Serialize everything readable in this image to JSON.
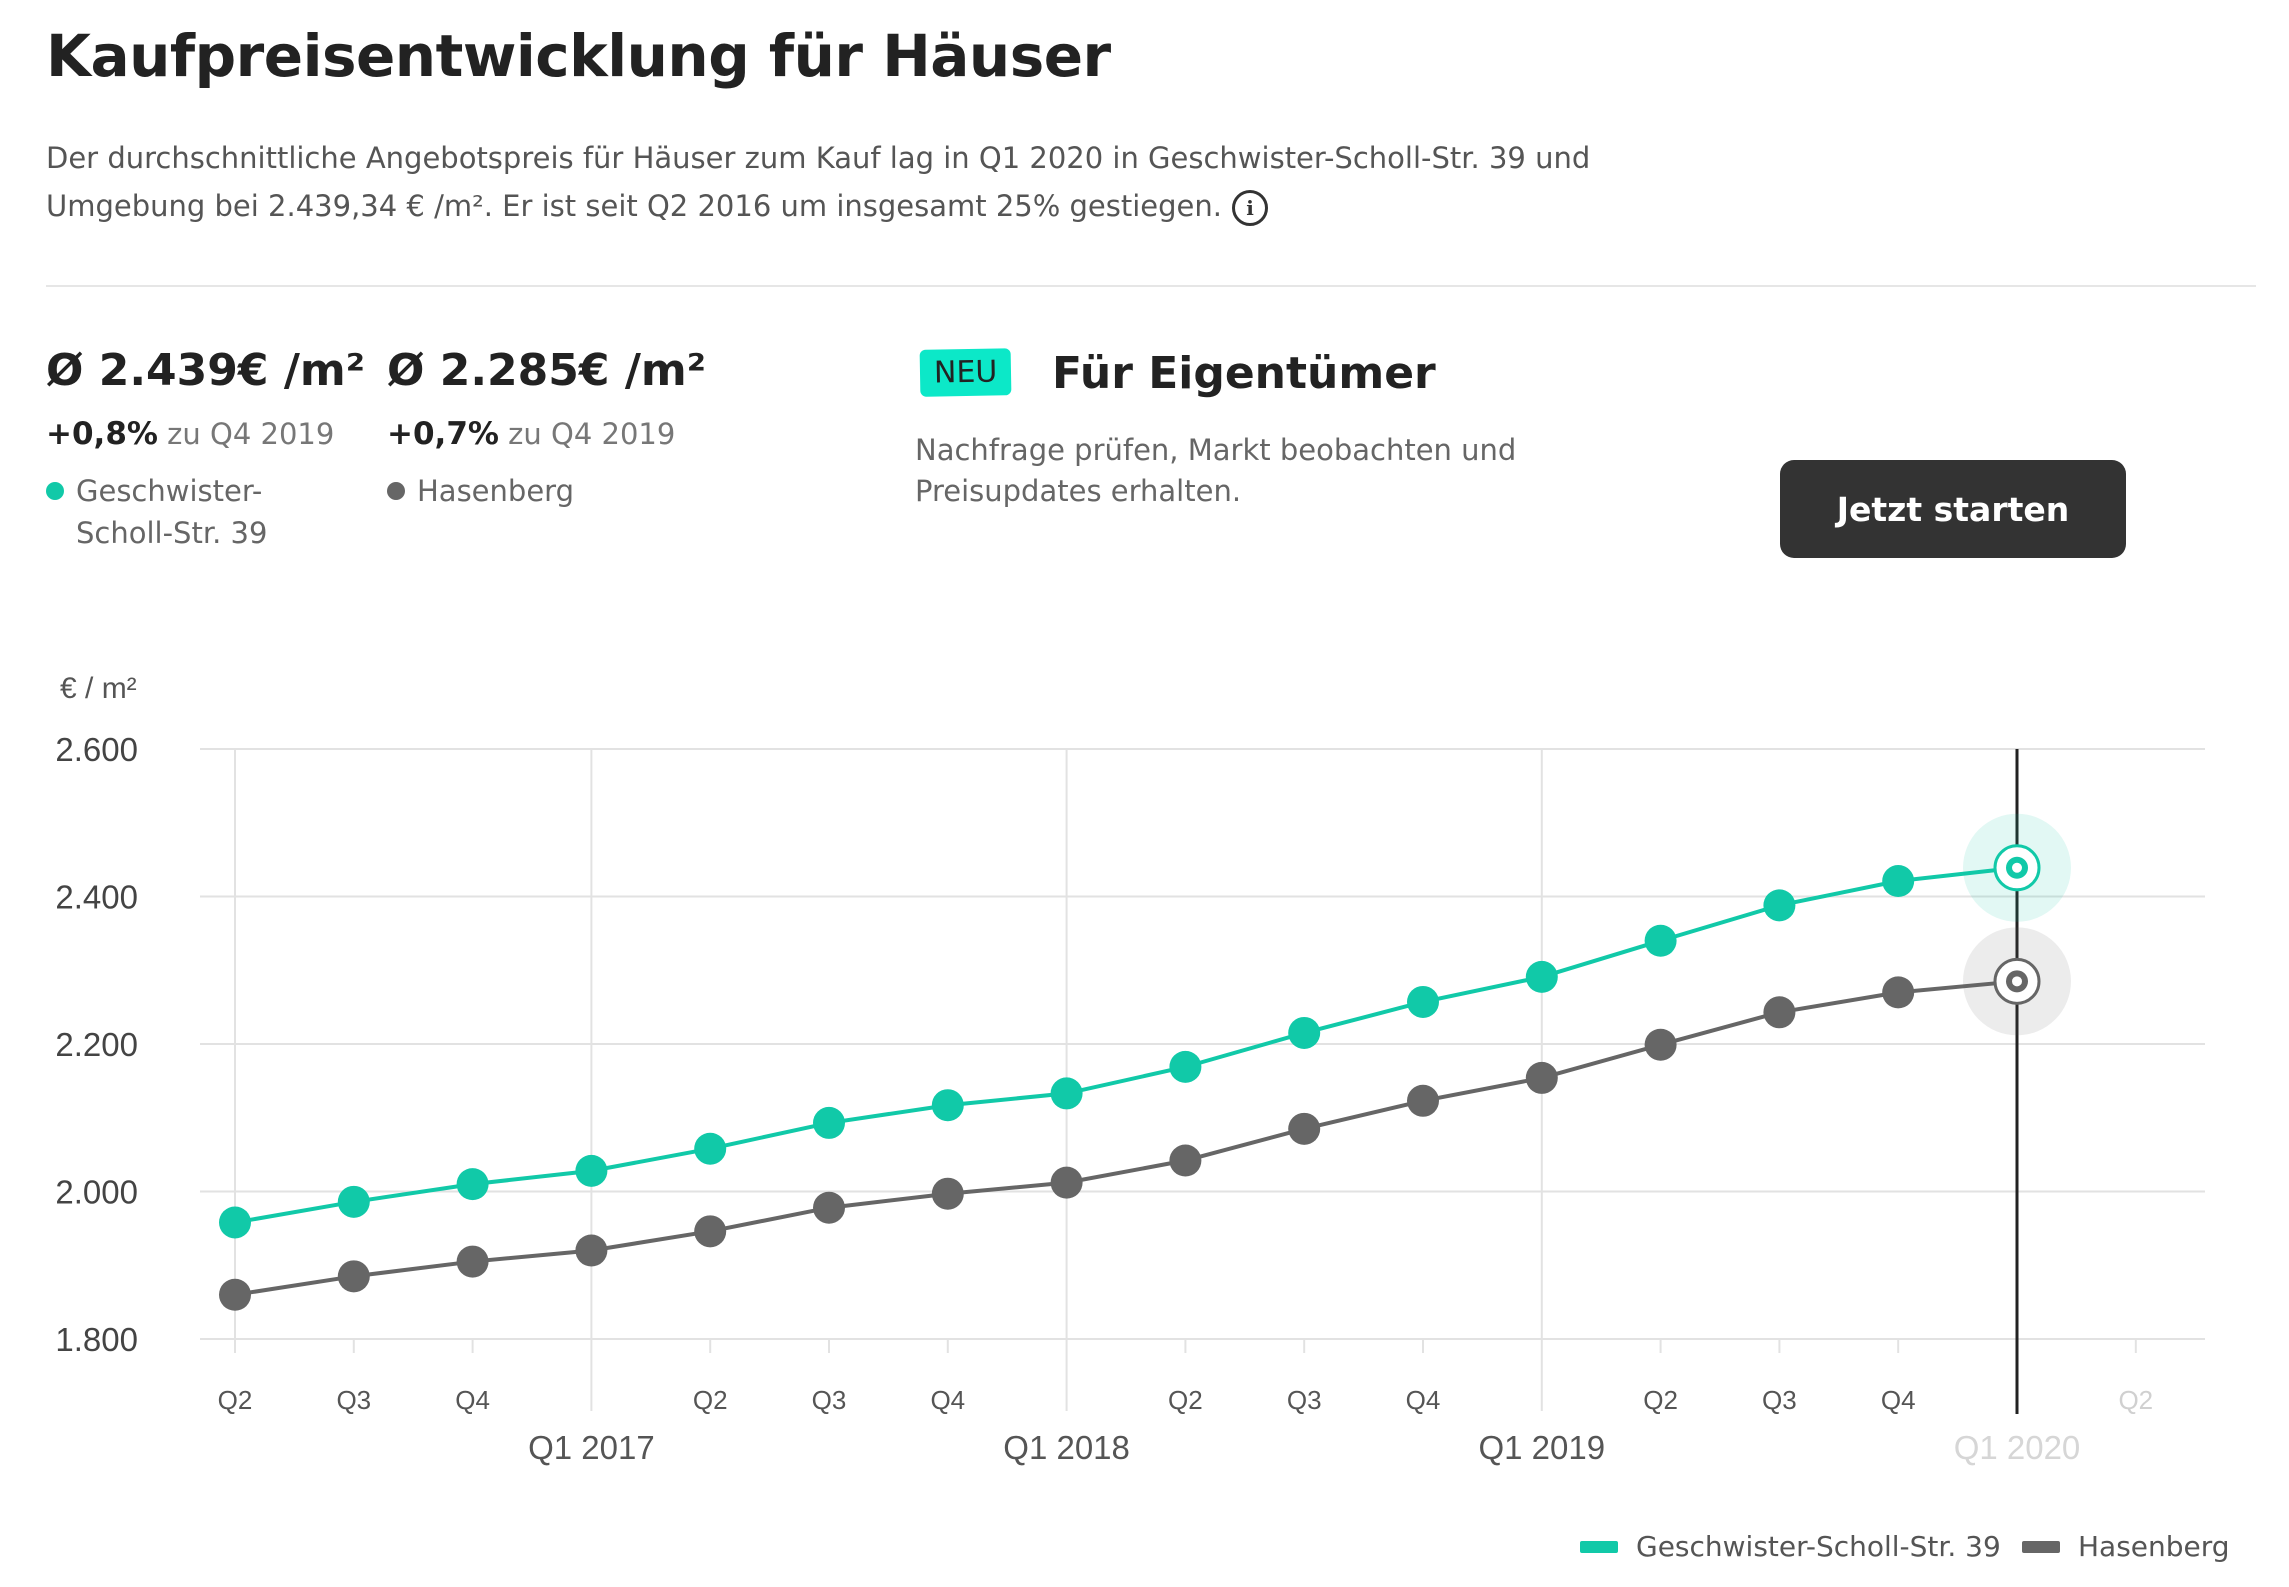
{
  "header": {
    "title": "Kaufpreisentwicklung für Häuser",
    "description": "Der durchschnittliche Angebotspreis für Häuser zum Kauf lag in Q1 2020 in Geschwister-Scholl-Str. 39 und Umgebung bei 2.439,34 € /m². Er ist seit Q2 2016 um insgesamt 25% gestiegen.",
    "info_icon": "info-icon"
  },
  "stats": [
    {
      "value": "Ø 2.439€ /m²",
      "change": "+0,8%",
      "change_suffix": "zu Q4 2019",
      "location": "Geschwister-Scholl-Str. 39",
      "color": "#11c9a8"
    },
    {
      "value": "Ø 2.285€ /m²",
      "change": "+0,7%",
      "change_suffix": "zu Q4 2019",
      "location": "Hasenberg",
      "color": "#666666"
    }
  ],
  "owner_promo": {
    "badge": "NEU",
    "title": "Für Eigentümer",
    "text": "Nachfrage prüfen, Markt beobachten und Preisupdates erhalten.",
    "button_label": "Jetzt starten"
  },
  "chart_data": {
    "type": "line",
    "ylabel": "€ / m²",
    "ylim": [
      1800,
      2600
    ],
    "yticks": [
      1800,
      2000,
      2200,
      2400,
      2600
    ],
    "ytick_labels": [
      "1.800",
      "2.000",
      "2.200",
      "2.400",
      "2.600"
    ],
    "x_quarters": [
      "Q2 2016",
      "Q3 2016",
      "Q4 2016",
      "Q1 2017",
      "Q2 2017",
      "Q3 2017",
      "Q4 2017",
      "Q1 2018",
      "Q2 2018",
      "Q3 2018",
      "Q4 2018",
      "Q1 2019",
      "Q2 2019",
      "Q3 2019",
      "Q4 2019",
      "Q1 2020",
      "Q2 2020"
    ],
    "x_tick_labels": [
      "Q2",
      "Q3",
      "Q4",
      "",
      "Q2",
      "Q3",
      "Q4",
      "",
      "Q2",
      "Q3",
      "Q4",
      "",
      "Q2",
      "Q3",
      "Q4",
      "",
      "Q2"
    ],
    "year_labels": [
      {
        "index": 3,
        "label": "Q1 2017"
      },
      {
        "index": 7,
        "label": "Q1 2018"
      },
      {
        "index": 11,
        "label": "Q1 2019"
      },
      {
        "index": 15,
        "label": "Q1 2020"
      }
    ],
    "highlight_index": 15,
    "faded_from_index": 15,
    "grid": true,
    "legend_position": "bottom-right",
    "series": [
      {
        "name": "Geschwister-Scholl-Str. 39",
        "color": "#11c9a8",
        "values": [
          1958,
          1986,
          2010,
          2028,
          2058,
          2093,
          2117,
          2133,
          2169,
          2215,
          2257,
          2291,
          2340,
          2388,
          2421,
          2439
        ]
      },
      {
        "name": "Hasenberg",
        "color": "#666666",
        "values": [
          1860,
          1885,
          1905,
          1920,
          1946,
          1978,
          1997,
          2012,
          2042,
          2085,
          2123,
          2154,
          2199,
          2243,
          2270,
          2285
        ]
      }
    ]
  }
}
